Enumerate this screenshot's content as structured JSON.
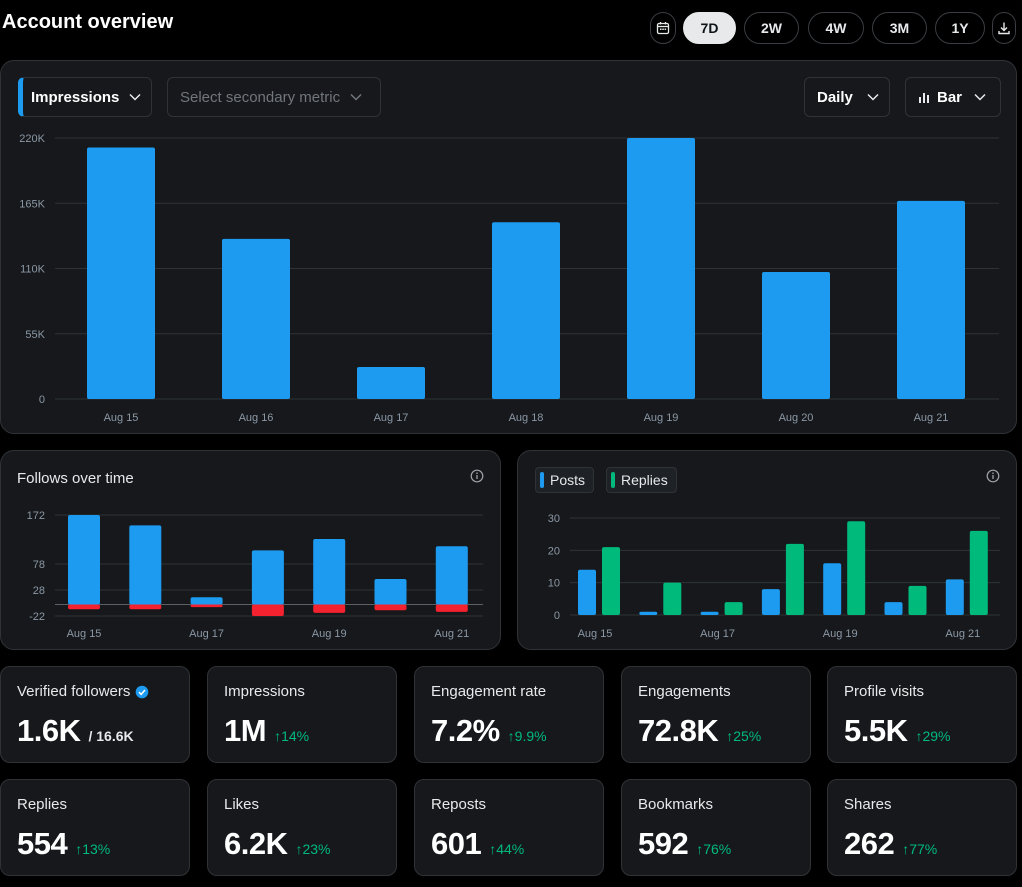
{
  "header": {
    "title": "Account overview",
    "ranges": [
      "7D",
      "2W",
      "4W",
      "3M",
      "1Y"
    ],
    "active_range": "7D"
  },
  "main_chart_controls": {
    "primary_metric": "Impressions",
    "secondary_placeholder": "Select secondary metric",
    "granularity": "Daily",
    "chart_type": "Bar"
  },
  "follows": {
    "title": "Follows over time"
  },
  "posts_replies": {
    "legend": [
      "Posts",
      "Replies"
    ]
  },
  "colors": {
    "blue": "#1d9bf0",
    "green": "#00ba7c",
    "red": "#f4212e"
  },
  "stats": [
    {
      "label": "Verified followers",
      "value": "1.6K",
      "sub": "/ 16.6K",
      "delta": "",
      "verified": true
    },
    {
      "label": "Impressions",
      "value": "1M",
      "delta": "↑14%"
    },
    {
      "label": "Engagement rate",
      "value": "7.2%",
      "delta": "↑9.9%"
    },
    {
      "label": "Engagements",
      "value": "72.8K",
      "delta": "↑25%"
    },
    {
      "label": "Profile visits",
      "value": "5.5K",
      "delta": "↑29%"
    },
    {
      "label": "Replies",
      "value": "554",
      "delta": "↑13%"
    },
    {
      "label": "Likes",
      "value": "6.2K",
      "delta": "↑23%"
    },
    {
      "label": "Reposts",
      "value": "601",
      "delta": "↑44%"
    },
    {
      "label": "Bookmarks",
      "value": "592",
      "delta": "↑76%"
    },
    {
      "label": "Shares",
      "value": "262",
      "delta": "↑77%"
    }
  ],
  "chart_data": [
    {
      "type": "bar",
      "title": "Impressions",
      "categories": [
        "Aug 15",
        "Aug 16",
        "Aug 17",
        "Aug 18",
        "Aug 19",
        "Aug 20",
        "Aug 21"
      ],
      "values": [
        212000,
        135000,
        27000,
        149000,
        220000,
        107000,
        167000
      ],
      "ylim": [
        0,
        220000
      ],
      "yticks": [
        0,
        55000,
        110000,
        165000,
        220000
      ],
      "ytick_labels": [
        "0",
        "55K",
        "110K",
        "165K",
        "220K"
      ],
      "grid": true
    },
    {
      "type": "bar",
      "title": "Follows over time",
      "categories": [
        "Aug 15",
        "Aug 16",
        "Aug 17",
        "Aug 18",
        "Aug 19",
        "Aug 20",
        "Aug 21"
      ],
      "xtick_labels": [
        "Aug 15",
        "",
        "Aug 17",
        "",
        "Aug 19",
        "",
        "Aug 21"
      ],
      "series": [
        {
          "name": "Follows",
          "values": [
            172,
            152,
            14,
            104,
            126,
            49,
            112
          ]
        },
        {
          "name": "Unfollows",
          "values": [
            -9,
            -9,
            -5,
            -22,
            -16,
            -11,
            -14
          ]
        }
      ],
      "ylim": [
        -22,
        172
      ],
      "yticks": [
        -22,
        28,
        78,
        172
      ],
      "ytick_labels": [
        "-22",
        "28",
        "78",
        "172"
      ],
      "grid": true
    },
    {
      "type": "bar",
      "title": "Posts and Replies",
      "categories": [
        "Aug 15",
        "Aug 16",
        "Aug 17",
        "Aug 18",
        "Aug 19",
        "Aug 20",
        "Aug 21"
      ],
      "xtick_labels": [
        "Aug 15",
        "",
        "Aug 17",
        "",
        "Aug 19",
        "",
        "Aug 21"
      ],
      "series": [
        {
          "name": "Posts",
          "values": [
            14,
            1,
            1,
            8,
            16,
            4,
            11
          ]
        },
        {
          "name": "Replies",
          "values": [
            21,
            10,
            4,
            22,
            29,
            9,
            26
          ]
        }
      ],
      "ylim": [
        0,
        30
      ],
      "yticks": [
        0,
        10,
        20,
        30
      ],
      "ytick_labels": [
        "0",
        "10",
        "20",
        "30"
      ],
      "grid": true
    }
  ]
}
